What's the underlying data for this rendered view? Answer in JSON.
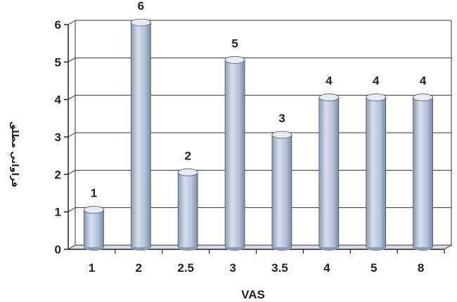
{
  "chart_data": {
    "type": "bar",
    "categories": [
      "1",
      "2",
      "2.5",
      "3",
      "3.5",
      "4",
      "5",
      "8"
    ],
    "values": [
      1,
      6,
      2,
      5,
      3,
      4,
      4,
      4
    ],
    "xlabel": "VAS",
    "ylabel": "فراواني مطلق",
    "ylim": [
      0,
      6
    ],
    "yticks": [
      "0",
      "1",
      "2",
      "3",
      "4",
      "5",
      "6"
    ],
    "grid": true,
    "style": "3d-cylinder",
    "bar_color": "#b8c6de",
    "data_labels": true
  }
}
